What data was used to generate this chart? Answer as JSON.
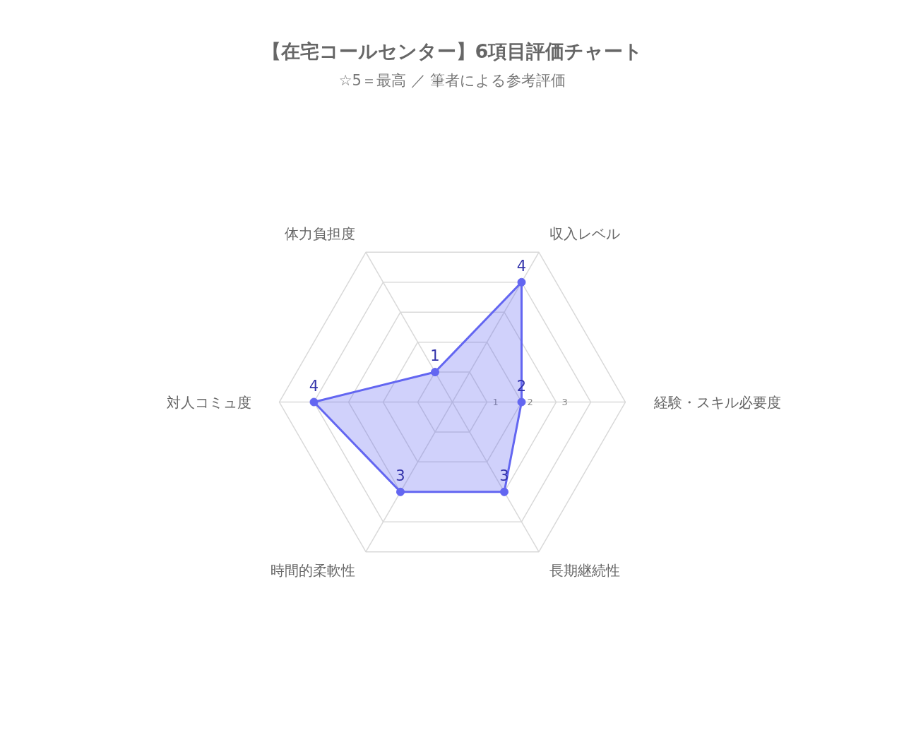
{
  "chart_data": {
    "type": "radar",
    "title": "【在宅コールセンター】6項目評価チャート",
    "subtitle": "☆5＝最高 ／ 筆者による参考評価",
    "categories": [
      "収入レベル",
      "経験・スキル必要度",
      "長期継続性",
      "時間的柔軟性",
      "対人コミュ度",
      "体力負担度"
    ],
    "series": [
      {
        "color": "#6366f1",
        "values": [
          4,
          2,
          3,
          3,
          4,
          1
        ]
      }
    ],
    "ylim": [
      0,
      5
    ],
    "yticks": [
      1,
      2,
      3
    ],
    "data_labels": true,
    "marker": "circle",
    "grid": true
  }
}
